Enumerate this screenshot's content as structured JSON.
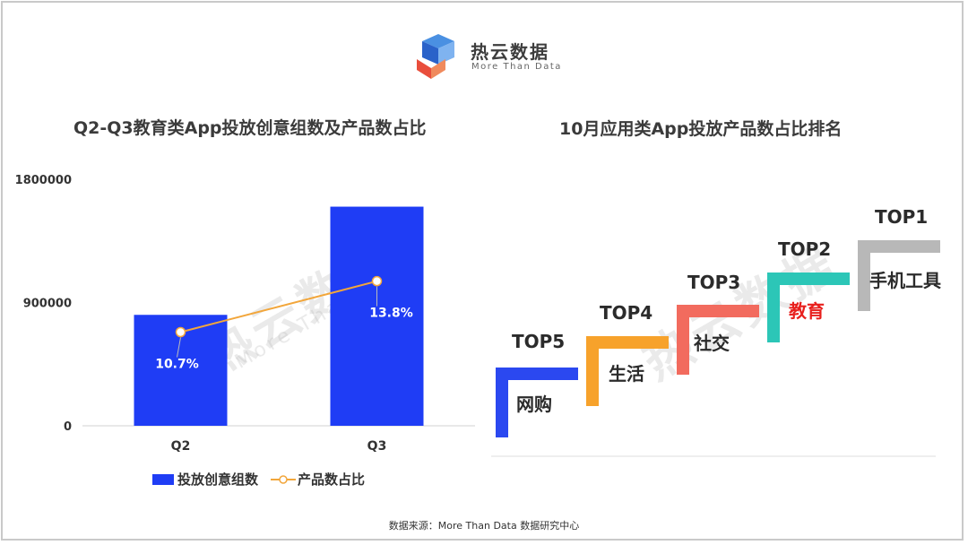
{
  "logo": {
    "name": "热云数据",
    "tagline": "More Than Data"
  },
  "left_title": "Q2-Q3教育类App投放创意组数及产品数占比",
  "right_title": "10月应用类App投放产品数占比排名",
  "source": "数据来源：More Than Data 数据研究中心",
  "watermark": {
    "main": "热云数据",
    "sub": "More Than Data"
  },
  "legend": {
    "bar": "投放创意组数",
    "line": "产品数占比"
  },
  "colors": {
    "bar": "#1f3df5",
    "line": "#f2a63b",
    "highlight": "#e8201d"
  },
  "chart_data": {
    "type": "bar",
    "categories": [
      "Q2",
      "Q3"
    ],
    "yticks": [
      "0",
      "900000",
      "1800000"
    ],
    "ylim": [
      0,
      1800000
    ],
    "series": [
      {
        "name": "投放创意组数",
        "type": "bar",
        "values": [
          810000,
          1600000
        ]
      },
      {
        "name": "产品数占比",
        "type": "line",
        "values": [
          10.7,
          13.8
        ],
        "labels": [
          "10.7%",
          "13.8%"
        ]
      }
    ]
  },
  "ranking": [
    {
      "rank": "TOP5",
      "app": "网购",
      "color": "#2b48f0"
    },
    {
      "rank": "TOP4",
      "app": "生活",
      "color": "#f7a22b"
    },
    {
      "rank": "TOP3",
      "app": "社交",
      "color": "#f26b5e"
    },
    {
      "rank": "TOP2",
      "app": "教育",
      "color": "#2cc6b7",
      "highlight": true
    },
    {
      "rank": "TOP1",
      "app": "手机工具",
      "color": "#b8b8b8"
    }
  ]
}
